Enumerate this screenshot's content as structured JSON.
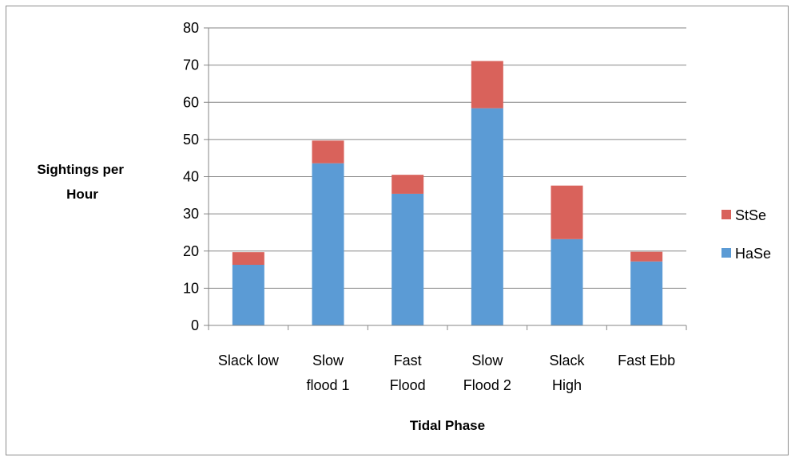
{
  "chart_data": {
    "type": "bar",
    "stacked": true,
    "title": "",
    "xlabel": "Tidal Phase",
    "ylabel_lines": [
      "Sightings per",
      "Hour"
    ],
    "categories": [
      [
        "Slack low"
      ],
      [
        "Slow",
        "flood 1"
      ],
      [
        "Fast",
        "Flood"
      ],
      [
        "Slow",
        "Flood 2"
      ],
      [
        "Slack",
        "High"
      ],
      [
        "Fast Ebb"
      ]
    ],
    "series": [
      {
        "name": "HaSe",
        "color": "#5b9bd5",
        "values": [
          16.3,
          43.6,
          35.4,
          58.4,
          23.2,
          17.2
        ]
      },
      {
        "name": "StSe",
        "color": "#d9625b",
        "values": [
          3.4,
          6.1,
          5.1,
          12.7,
          14.4,
          2.6
        ]
      }
    ],
    "ylim": [
      0,
      80
    ],
    "yticks": [
      0,
      10,
      20,
      30,
      40,
      50,
      60,
      70,
      80
    ],
    "grid": true,
    "legend_position": "right",
    "legend_order": [
      "StSe",
      "HaSe"
    ]
  }
}
